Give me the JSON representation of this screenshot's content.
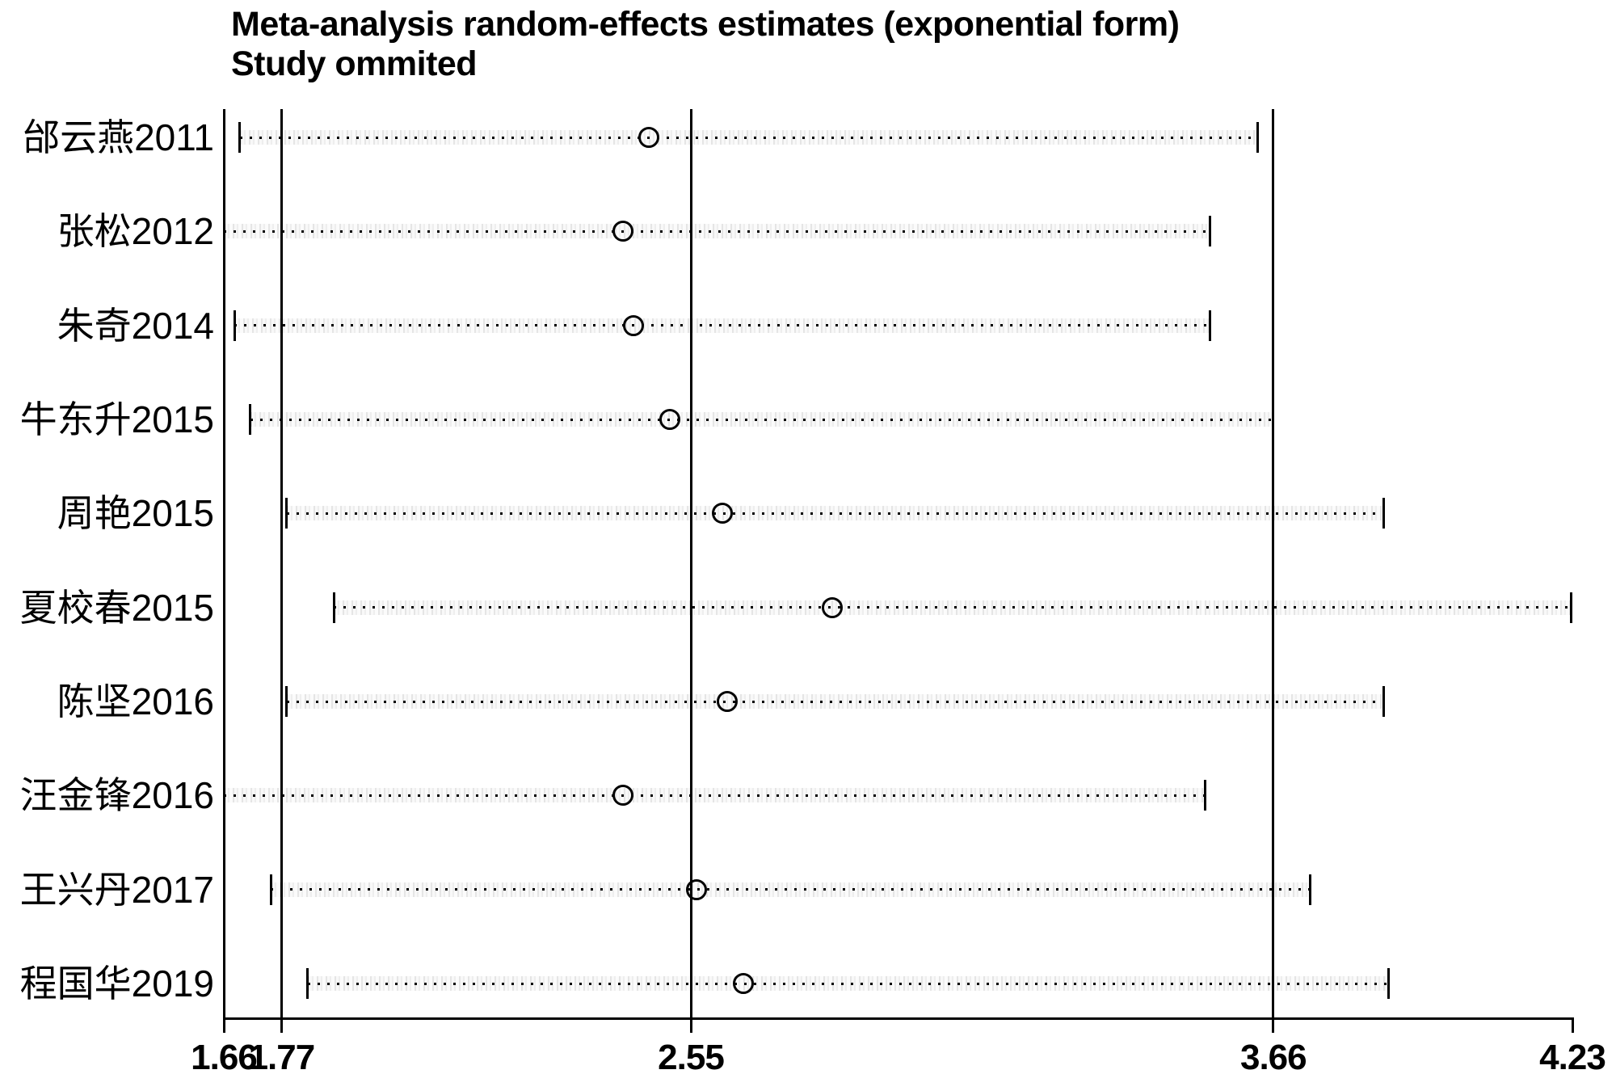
{
  "title": {
    "line1": "Meta-analysis random-effects estimates (exponential form)",
    "line2": "Study ommited"
  },
  "colors": {
    "foreground": "#000000",
    "background": "#ffffff",
    "band_gray": "#dcdcdc"
  },
  "chart_data": {
    "type": "scatter",
    "subtype": "leave-one-out-sensitivity-forest",
    "title": "Meta-analysis random-effects estimates (exponential form)",
    "subtitle": "Study ommited",
    "xlabel": "",
    "ylabel": "",
    "xlim": [
      1.66,
      4.23
    ],
    "x_ticks": [
      1.66,
      1.77,
      2.55,
      3.66,
      4.23
    ],
    "x_tick_labels": [
      "1.66",
      "1.77",
      "2.55",
      "3.66",
      "4.23"
    ],
    "reference_lines": [
      1.66,
      1.77,
      2.55,
      3.66
    ],
    "overall": {
      "lower_ci": 1.77,
      "estimate": 2.55,
      "upper_ci": 3.66
    },
    "grid": false,
    "legend": false,
    "marker": "open-circle",
    "ci_line_style": "dotted",
    "studies": [
      {
        "label": "邰云燕2011",
        "lower": 1.69,
        "estimate": 2.47,
        "upper": 3.63,
        "left_bracket": true,
        "right_bracket": true
      },
      {
        "label": "张松2012",
        "lower": 1.66,
        "estimate": 2.42,
        "upper": 3.54,
        "left_bracket": false,
        "right_bracket": true
      },
      {
        "label": "朱奇2014",
        "lower": 1.68,
        "estimate": 2.44,
        "upper": 3.54,
        "left_bracket": true,
        "right_bracket": true
      },
      {
        "label": "牛东升2015",
        "lower": 1.71,
        "estimate": 2.51,
        "upper": 3.66,
        "left_bracket": true,
        "right_bracket": true
      },
      {
        "label": "周艳2015",
        "lower": 1.78,
        "estimate": 2.61,
        "upper": 3.87,
        "left_bracket": true,
        "right_bracket": true
      },
      {
        "label": "夏校春2015",
        "lower": 1.87,
        "estimate": 2.82,
        "upper": 4.23,
        "left_bracket": true,
        "right_bracket": true
      },
      {
        "label": "陈坚2016",
        "lower": 1.78,
        "estimate": 2.62,
        "upper": 3.87,
        "left_bracket": true,
        "right_bracket": true
      },
      {
        "label": "汪金锋2016",
        "lower": 1.66,
        "estimate": 2.42,
        "upper": 3.53,
        "left_bracket": true,
        "right_bracket": true
      },
      {
        "label": "王兴丹2017",
        "lower": 1.75,
        "estimate": 2.56,
        "upper": 3.73,
        "left_bracket": true,
        "right_bracket": true
      },
      {
        "label": "程国华2019",
        "lower": 1.82,
        "estimate": 2.65,
        "upper": 3.88,
        "left_bracket": true,
        "right_bracket": true
      }
    ]
  }
}
